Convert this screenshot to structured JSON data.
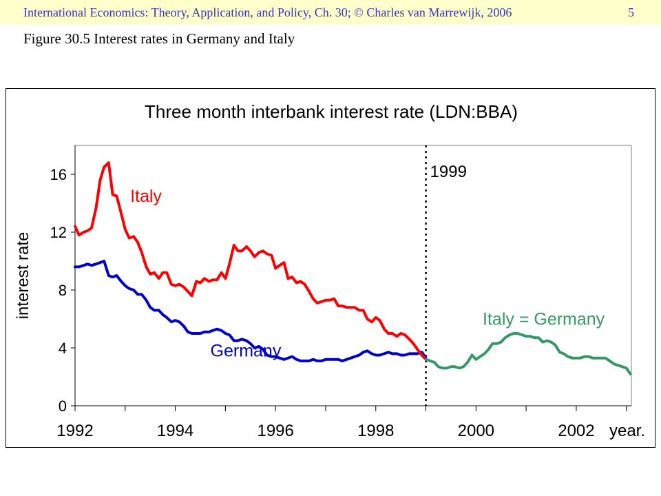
{
  "header": {
    "text": "International Economics: Theory, Application, and Policy, Ch. 30;  © Charles van Marrewijk, 2006",
    "page_number": "5"
  },
  "slide": {
    "title": "Figure 30.5 Interest rates in Germany and Italy"
  },
  "colors": {
    "italy": "#ff0000",
    "germany": "#0000cc",
    "common": "#339966",
    "header_bg": "#ffffcc",
    "header_text": "#3333cc"
  },
  "chart_data": {
    "type": "line",
    "title": "Three month interbank interest rate (LDN:BBA)",
    "ylabel": "interest rate",
    "xlabel": "year.",
    "xlim": [
      1992,
      2003.1
    ],
    "ylim": [
      0,
      18
    ],
    "x_ticks": [
      1992,
      1994,
      1996,
      1998,
      2000,
      2002
    ],
    "x_tick_labels": [
      "1992",
      "1994",
      "1996",
      "1998",
      "2000",
      "2002"
    ],
    "y_ticks": [
      0,
      4,
      8,
      12,
      16
    ],
    "y_tick_labels": [
      "0",
      "4",
      "8",
      "12",
      "16"
    ],
    "grid": false,
    "legend": "none",
    "vline": {
      "x": 1999.0,
      "style": "dotted",
      "label": "1999"
    },
    "annotations": [
      {
        "text": "Italy",
        "series": "Italy",
        "x": 1993.1,
        "y": 14.1
      },
      {
        "text": "Germany",
        "series": "Germany",
        "x": 1994.7,
        "y": 3.4
      },
      {
        "text": "Italy = Germany",
        "series": "Italy = Germany",
        "x": 2001.35,
        "y": 5.6
      }
    ],
    "series": [
      {
        "name": "Italy",
        "x": [
          1992.0,
          1992.08,
          1992.17,
          1992.25,
          1992.33,
          1992.42,
          1992.5,
          1992.58,
          1992.67,
          1992.75,
          1992.83,
          1992.92,
          1993.0,
          1993.08,
          1993.17,
          1993.25,
          1993.33,
          1993.42,
          1993.5,
          1993.58,
          1993.67,
          1993.75,
          1993.83,
          1993.92,
          1994.0,
          1994.08,
          1994.17,
          1994.25,
          1994.33,
          1994.42,
          1994.5,
          1994.58,
          1994.67,
          1994.75,
          1994.83,
          1994.92,
          1995.0,
          1995.08,
          1995.17,
          1995.25,
          1995.33,
          1995.42,
          1995.5,
          1995.58,
          1995.67,
          1995.75,
          1995.83,
          1995.92,
          1996.0,
          1996.08,
          1996.17,
          1996.25,
          1996.33,
          1996.42,
          1996.5,
          1996.58,
          1996.67,
          1996.75,
          1996.83,
          1996.92,
          1997.0,
          1997.08,
          1997.17,
          1997.25,
          1997.33,
          1997.42,
          1997.5,
          1997.58,
          1997.67,
          1997.75,
          1997.83,
          1997.92,
          1998.0,
          1998.08,
          1998.17,
          1998.25,
          1998.33,
          1998.42,
          1998.5,
          1998.58,
          1998.67,
          1998.75,
          1998.83,
          1998.92,
          1999.0
        ],
        "values": [
          12.4,
          11.8,
          12.0,
          12.1,
          12.3,
          13.7,
          15.6,
          16.5,
          16.8,
          14.6,
          14.5,
          13.3,
          12.2,
          11.6,
          11.7,
          11.3,
          10.6,
          9.6,
          9.1,
          9.2,
          8.8,
          9.2,
          9.2,
          8.4,
          8.3,
          8.4,
          8.2,
          7.9,
          7.6,
          8.6,
          8.5,
          8.8,
          8.6,
          8.7,
          8.7,
          9.2,
          8.8,
          9.8,
          11.1,
          10.7,
          10.7,
          11.0,
          10.7,
          10.3,
          10.6,
          10.7,
          10.5,
          10.4,
          9.5,
          9.7,
          9.9,
          8.8,
          8.9,
          8.5,
          8.6,
          8.4,
          7.9,
          7.4,
          7.1,
          7.2,
          7.3,
          7.3,
          7.4,
          6.9,
          6.9,
          6.8,
          6.8,
          6.8,
          6.6,
          6.6,
          6.0,
          5.8,
          6.1,
          5.9,
          5.3,
          5.0,
          5.0,
          4.8,
          5.0,
          4.9,
          4.6,
          4.3,
          3.9,
          3.5,
          3.2
        ]
      },
      {
        "name": "Germany",
        "x": [
          1992.0,
          1992.08,
          1992.17,
          1992.25,
          1992.33,
          1992.42,
          1992.5,
          1992.58,
          1992.67,
          1992.75,
          1992.83,
          1992.92,
          1993.0,
          1993.08,
          1993.17,
          1993.25,
          1993.33,
          1993.42,
          1993.5,
          1993.58,
          1993.67,
          1993.75,
          1993.83,
          1993.92,
          1994.0,
          1994.08,
          1994.17,
          1994.25,
          1994.33,
          1994.42,
          1994.5,
          1994.58,
          1994.67,
          1994.75,
          1994.83,
          1994.92,
          1995.0,
          1995.08,
          1995.17,
          1995.25,
          1995.33,
          1995.42,
          1995.5,
          1995.58,
          1995.67,
          1995.75,
          1995.83,
          1995.92,
          1996.0,
          1996.08,
          1996.17,
          1996.25,
          1996.33,
          1996.42,
          1996.5,
          1996.58,
          1996.67,
          1996.75,
          1996.83,
          1996.92,
          1997.0,
          1997.08,
          1997.17,
          1997.25,
          1997.33,
          1997.42,
          1997.5,
          1997.58,
          1997.67,
          1997.75,
          1997.83,
          1997.92,
          1998.0,
          1998.08,
          1998.17,
          1998.25,
          1998.33,
          1998.42,
          1998.5,
          1998.58,
          1998.67,
          1998.75,
          1998.83,
          1998.92,
          1999.0
        ],
        "values": [
          9.6,
          9.6,
          9.7,
          9.8,
          9.7,
          9.8,
          9.9,
          10.0,
          9.0,
          8.9,
          9.0,
          8.6,
          8.3,
          8.1,
          8.0,
          7.7,
          7.7,
          7.3,
          6.8,
          6.6,
          6.6,
          6.3,
          6.1,
          5.8,
          5.9,
          5.8,
          5.5,
          5.1,
          5.0,
          5.0,
          5.0,
          5.1,
          5.1,
          5.2,
          5.3,
          5.2,
          5.0,
          4.9,
          4.5,
          4.5,
          4.6,
          4.5,
          4.3,
          4.0,
          4.1,
          3.9,
          3.5,
          3.4,
          3.4,
          3.3,
          3.2,
          3.3,
          3.4,
          3.2,
          3.1,
          3.1,
          3.1,
          3.2,
          3.1,
          3.1,
          3.2,
          3.2,
          3.2,
          3.2,
          3.1,
          3.2,
          3.3,
          3.4,
          3.5,
          3.7,
          3.8,
          3.6,
          3.5,
          3.5,
          3.6,
          3.7,
          3.6,
          3.6,
          3.5,
          3.5,
          3.6,
          3.6,
          3.6,
          3.7,
          3.3
        ]
      },
      {
        "name": "Italy = Germany",
        "x": [
          1999.0,
          1999.08,
          1999.17,
          1999.25,
          1999.33,
          1999.42,
          1999.5,
          1999.58,
          1999.67,
          1999.75,
          1999.83,
          1999.92,
          2000.0,
          2000.08,
          2000.17,
          2000.25,
          2000.33,
          2000.42,
          2000.5,
          2000.58,
          2000.67,
          2000.75,
          2000.83,
          2000.92,
          2001.0,
          2001.08,
          2001.17,
          2001.25,
          2001.33,
          2001.42,
          2001.5,
          2001.58,
          2001.67,
          2001.75,
          2001.83,
          2001.92,
          2002.0,
          2002.08,
          2002.17,
          2002.25,
          2002.33,
          2002.42,
          2002.5,
          2002.58,
          2002.67,
          2002.75,
          2002.83,
          2002.92,
          2003.0,
          2003.08
        ],
        "values": [
          3.2,
          3.1,
          3.0,
          2.7,
          2.6,
          2.6,
          2.7,
          2.7,
          2.6,
          2.7,
          3.0,
          3.5,
          3.2,
          3.4,
          3.6,
          3.9,
          4.3,
          4.3,
          4.4,
          4.7,
          4.9,
          5.0,
          5.0,
          4.9,
          4.8,
          4.8,
          4.7,
          4.7,
          4.4,
          4.5,
          4.4,
          4.2,
          3.7,
          3.6,
          3.4,
          3.3,
          3.3,
          3.3,
          3.4,
          3.4,
          3.3,
          3.3,
          3.3,
          3.3,
          3.1,
          2.9,
          2.8,
          2.7,
          2.6,
          2.2
        ]
      }
    ]
  }
}
